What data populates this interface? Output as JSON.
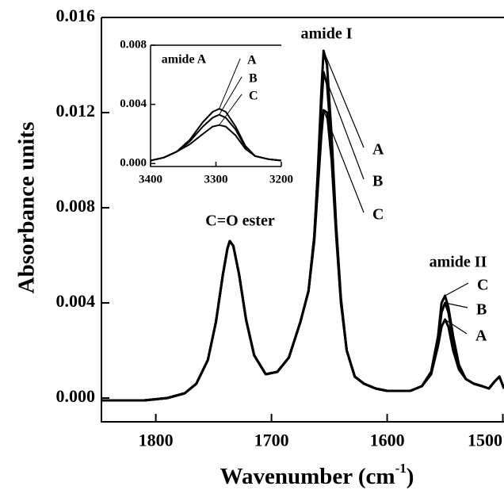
{
  "chart_data": [
    {
      "type": "line",
      "y_label": "Absorbance units",
      "x_label": [
        "Wavenumber (cm",
        "-1",
        ")"
      ],
      "annotations": [
        "C=O ester",
        "amide I",
        "amide II"
      ],
      "x": [
        1847,
        1830,
        1810,
        1790,
        1775,
        1765,
        1755,
        1748,
        1742,
        1738,
        1736,
        1733,
        1728,
        1722,
        1715,
        1705,
        1695,
        1685,
        1675,
        1668,
        1663,
        1660,
        1657,
        1655,
        1652,
        1648,
        1644,
        1640,
        1635,
        1628,
        1620,
        1610,
        1600,
        1590,
        1580,
        1570,
        1562,
        1556,
        1553,
        1550,
        1547,
        1543,
        1538,
        1532,
        1525,
        1518,
        1512,
        1507,
        1503,
        1499
      ],
      "series": [
        {
          "name": "A",
          "color": "#000000",
          "values": [
            -0.0001,
            -0.0001,
            -0.0001,
            0.0,
            0.0002,
            0.0006,
            0.0016,
            0.0032,
            0.0052,
            0.0063,
            0.0066,
            0.0064,
            0.0052,
            0.0033,
            0.0018,
            0.001,
            0.0011,
            0.0017,
            0.0032,
            0.0045,
            0.0068,
            0.0095,
            0.0128,
            0.0146,
            0.014,
            0.011,
            0.0072,
            0.0042,
            0.002,
            0.0009,
            0.0006,
            0.0004,
            0.0003,
            0.0003,
            0.0003,
            0.0005,
            0.001,
            0.0022,
            0.003,
            0.0033,
            0.003,
            0.002,
            0.0012,
            0.0008,
            0.0006,
            0.0005,
            0.0004,
            0.0007,
            0.0009,
            0.0004
          ]
        },
        {
          "name": "B",
          "color": "#000000",
          "values": [
            -0.0001,
            -0.0001,
            -0.0001,
            0.0,
            0.0002,
            0.0006,
            0.0016,
            0.0032,
            0.0052,
            0.0063,
            0.0066,
            0.0064,
            0.0052,
            0.0033,
            0.0018,
            0.001,
            0.0011,
            0.0017,
            0.0032,
            0.0045,
            0.0068,
            0.0093,
            0.0122,
            0.0137,
            0.0132,
            0.0106,
            0.007,
            0.0041,
            0.002,
            0.0009,
            0.0006,
            0.0004,
            0.0003,
            0.0003,
            0.0003,
            0.0005,
            0.001,
            0.0024,
            0.0036,
            0.004,
            0.0036,
            0.0024,
            0.0013,
            0.0008,
            0.0006,
            0.0005,
            0.0004,
            0.0007,
            0.0009,
            0.0004
          ]
        },
        {
          "name": "C",
          "color": "#000000",
          "values": [
            -0.0001,
            -0.0001,
            -0.0001,
            0.0,
            0.0002,
            0.0006,
            0.0016,
            0.0032,
            0.0052,
            0.0063,
            0.0066,
            0.0064,
            0.0052,
            0.0033,
            0.0018,
            0.001,
            0.0011,
            0.0017,
            0.0032,
            0.0045,
            0.0066,
            0.0088,
            0.011,
            0.0121,
            0.012,
            0.01,
            0.0068,
            0.004,
            0.002,
            0.0009,
            0.0006,
            0.0004,
            0.0003,
            0.0003,
            0.0003,
            0.0005,
            0.0011,
            0.0026,
            0.004,
            0.0043,
            0.0038,
            0.0026,
            0.0014,
            0.0008,
            0.0006,
            0.0005,
            0.0004,
            0.0007,
            0.0009,
            0.0004
          ]
        }
      ],
      "xlim": [
        1847,
        1499
      ],
      "xticks": [
        1800,
        1700,
        1600,
        1500
      ],
      "ylim": [
        -0.001,
        0.016
      ],
      "yticks": [
        {
          "value": 0,
          "label": "0.000"
        },
        0.004,
        0.008,
        0.012,
        0.016
      ]
    },
    {
      "type": "line",
      "annotations": [
        "amide A"
      ],
      "x": [
        3400,
        3380,
        3360,
        3340,
        3320,
        3305,
        3295,
        3285,
        3270,
        3255,
        3240,
        3220,
        3200
      ],
      "series": [
        {
          "name": "A",
          "color": "#000000",
          "values": [
            0.0002,
            0.0004,
            0.0008,
            0.0016,
            0.0028,
            0.0035,
            0.0037,
            0.0035,
            0.0025,
            0.0012,
            0.0005,
            0.0003,
            0.0002
          ]
        },
        {
          "name": "B",
          "color": "#000000",
          "values": [
            0.0002,
            0.0004,
            0.0008,
            0.0015,
            0.0025,
            0.0031,
            0.0033,
            0.0031,
            0.0023,
            0.0011,
            0.0005,
            0.0003,
            0.0002
          ]
        },
        {
          "name": "C",
          "color": "#000000",
          "values": [
            0.0002,
            0.0004,
            0.0008,
            0.0013,
            0.002,
            0.0025,
            0.0026,
            0.0025,
            0.0019,
            0.001,
            0.0005,
            0.0003,
            0.0002
          ]
        }
      ],
      "xlim": [
        3400,
        3200
      ],
      "xticks": [
        3400,
        3300,
        3200
      ],
      "ylim": [
        -0.0002,
        0.008
      ],
      "yticks": [
        {
          "value": 0,
          "label": "0.000"
        },
        0.004,
        0.008
      ]
    }
  ]
}
